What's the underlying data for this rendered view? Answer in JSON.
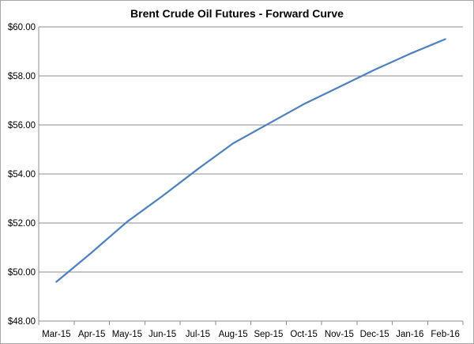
{
  "chart_data": {
    "type": "line",
    "title": "Brent Crude Oil Futures - Forward Curve",
    "xlabel": "",
    "ylabel": "",
    "categories": [
      "Mar-15",
      "Apr-15",
      "May-15",
      "Jun-15",
      "Jul-15",
      "Aug-15",
      "Sep-15",
      "Oct-15",
      "Nov-15",
      "Dec-15",
      "Jan-16",
      "Feb-16"
    ],
    "series": [
      {
        "values": [
          49.6,
          50.8,
          52.05,
          53.1,
          54.2,
          55.25,
          56.05,
          56.85,
          57.55,
          58.25,
          58.9,
          59.5
        ],
        "color": "#4f81bd"
      }
    ],
    "ylim": [
      48,
      60
    ],
    "yticks": [
      "$48.00",
      "$50.00",
      "$52.00",
      "$54.00",
      "$56.00",
      "$58.00",
      "$60.00"
    ],
    "grid": true,
    "legend": "none"
  }
}
